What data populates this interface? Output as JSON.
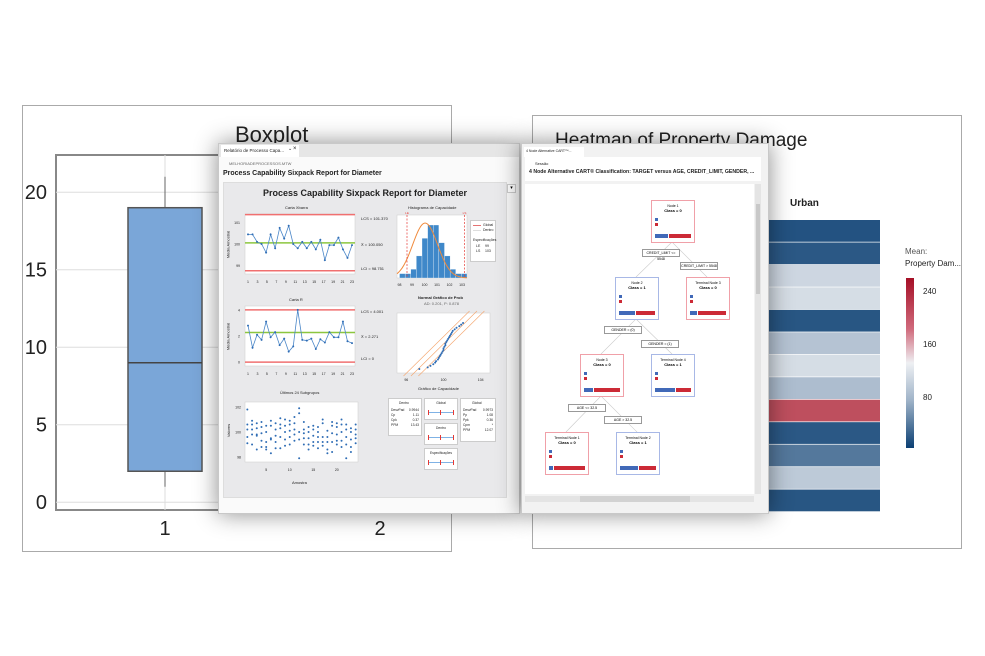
{
  "boxplot": {
    "title": "Boxplot",
    "chart_data": {
      "type": "box",
      "categories": [
        "1",
        "2"
      ],
      "ylim": [
        -0.5,
        22.4
      ],
      "yticks": [
        0,
        5,
        10,
        15,
        20
      ],
      "series": [
        {
          "category": "1",
          "min": 1,
          "q1": 2,
          "median": 9,
          "q3": 19,
          "max": 21
        }
      ],
      "grid": true,
      "box_color": "#7aa6d8"
    }
  },
  "heatmap": {
    "title": "Heatmap of Property Damage",
    "column_label": "Urban",
    "legend_title_1": "Mean:",
    "legend_title_2": "Property Dam...",
    "legend_ticks": [
      "240",
      "160",
      "80"
    ],
    "chart_data": {
      "type": "heatmap",
      "columns": [
        "Urban"
      ],
      "values": [
        15,
        20,
        120,
        125,
        18,
        105,
        125,
        100,
        225,
        20,
        45,
        110,
        18
      ],
      "scale": [
        0,
        260
      ],
      "colors": {
        "low": "#0b3f73",
        "mid": "#dde3ea",
        "high": "#b2182b"
      }
    }
  },
  "sixpack": {
    "tab_label": "Relatório de Processo Capa...",
    "tab_close": "×",
    "tab_menu": "⌄",
    "project": "MELHORIADEPROCESSOS.MTW",
    "report_title": "Process Capability Sixpack Report for Diameter",
    "graph_title": "Process Capability Sixpack Report for Diameter",
    "collapse": "▾",
    "ichart": {
      "title": "Carta Xbarra",
      "ylabel": "Média Amostral",
      "yticks": [
        "101",
        "100",
        "99"
      ],
      "ucl_label": "LCS = 101.370",
      "cl_label": "X̄ = 100.050",
      "lcl_label": "LCI = 98.751",
      "xticks": [
        "1",
        "3",
        "5",
        "7",
        "9",
        "11",
        "13",
        "15",
        "17",
        "19",
        "21",
        "23"
      ],
      "chart_data": {
        "type": "line",
        "ylim": [
          98.6,
          101.4
        ],
        "ucl": 101.37,
        "cl": 100.05,
        "lcl": 98.751,
        "values": [
          100.45,
          100.45,
          100.1,
          100.0,
          99.6,
          100.45,
          99.8,
          100.75,
          100.25,
          100.85,
          100.0,
          99.8,
          100.1,
          99.8,
          100.1,
          99.75,
          100.2,
          99.25,
          99.95,
          99.95,
          100.3,
          99.75,
          99.35,
          99.95
        ]
      }
    },
    "mrchart": {
      "title": "Carta R",
      "ylabel": "Média Amostral",
      "yticks": [
        "4",
        "2",
        "0"
      ],
      "ucl_label": "LCS = 4.001",
      "cl_label": "X̄ = 2.271",
      "lcl_label": "LCI = 0",
      "xticks": [
        "1",
        "3",
        "5",
        "7",
        "9",
        "11",
        "13",
        "15",
        "17",
        "19",
        "21",
        "23"
      ],
      "chart_data": {
        "type": "line",
        "ylim": [
          -0.3,
          4.3
        ],
        "ucl": 4.001,
        "cl": 2.271,
        "lcl": 0,
        "values": [
          2.8,
          1.1,
          2.1,
          1.7,
          3.1,
          1.9,
          2.3,
          1.3,
          1.8,
          0.8,
          1.2,
          4.0,
          1.7,
          1.65,
          1.8,
          1.0,
          1.75,
          1.5,
          2.3,
          1.9,
          1.9,
          3.1,
          1.6,
          1.45
        ]
      }
    },
    "lastsub": {
      "title": "Últimos 24 Subgrupos",
      "ylabel": "Valores",
      "xlabel": "Amostra",
      "yticks": [
        "102",
        "100",
        "98"
      ],
      "xticks": [
        "5",
        "10",
        "15",
        "20"
      ],
      "chart_data": {
        "type": "scatter",
        "ylim": [
          97.6,
          102.4
        ],
        "xlim": [
          0.5,
          24.5
        ],
        "values": [
          [
            101.8,
            100.6,
            100.2,
            99.6,
            99.1
          ],
          [
            100.9,
            100.6,
            100.2,
            99.8,
            99.0
          ],
          [
            100.7,
            100.3,
            99.8,
            99.7,
            98.6
          ],
          [
            100.8,
            100.4,
            99.9,
            99.3,
            98.8
          ],
          [
            100.5,
            100.0,
            99.2,
            98.6,
            98.8
          ],
          [
            100.9,
            100.5,
            99.5,
            99.4,
            98.3
          ],
          [
            100.7,
            100.2,
            99.7,
            99.2,
            98.7
          ],
          [
            101.1,
            100.6,
            100.3,
            99.6,
            98.7
          ],
          [
            101.0,
            100.5,
            100.0,
            99.4,
            98.9
          ],
          [
            100.9,
            100.6,
            100.1,
            99.6,
            99.0
          ],
          [
            101.2,
            100.7,
            100.2,
            99.8,
            99.3
          ],
          [
            101.9,
            101.5,
            100.0,
            99.4,
            97.9
          ],
          [
            100.8,
            100.2,
            99.9,
            99.5,
            99.0
          ],
          [
            100.4,
            100.0,
            99.5,
            99.0,
            98.6
          ],
          [
            100.5,
            100.2,
            99.7,
            99.2,
            98.9
          ],
          [
            100.4,
            100.0,
            99.6,
            99.2,
            98.7
          ],
          [
            101.0,
            100.7,
            99.6,
            99.2,
            98.9
          ],
          [
            100.1,
            99.6,
            99.2,
            98.6,
            98.3
          ],
          [
            100.8,
            100.5,
            99.9,
            99.2,
            98.4
          ],
          [
            100.7,
            100.4,
            99.8,
            99.3,
            99.0
          ],
          [
            101.0,
            100.6,
            100.0,
            99.3,
            98.8
          ],
          [
            100.6,
            100.2,
            99.6,
            99.0,
            97.9
          ],
          [
            100.3,
            100.0,
            99.4,
            98.8,
            98.4
          ],
          [
            100.6,
            100.2,
            99.8,
            99.5,
            99.1
          ]
        ]
      }
    },
    "histogram": {
      "title": "Histograma de Capacidade",
      "xticks": [
        "98",
        "99",
        "100",
        "101",
        "102",
        "103"
      ],
      "spec_l": "LE",
      "spec_u": "LS",
      "legend": {
        "global": "Global",
        "within": "Dentro",
        "specs": "Especificações",
        "le_label": "LE",
        "le_value": "99",
        "ls_label": "LS",
        "ls_value": "103"
      },
      "chart_data": {
        "type": "bar",
        "xlim": [
          97.8,
          103.4
        ],
        "bin_start": 98.0,
        "bin_width": 0.45,
        "counts": [
          1,
          1,
          2,
          5,
          9,
          12,
          12,
          8,
          5,
          2,
          1,
          1
        ],
        "lsl": 98.6,
        "usl": 103.2,
        "mean": 100.05,
        "sd": 0.9973
      }
    },
    "probplot": {
      "title": "Normal Gráfico de Prob",
      "subtitle": "AD: 0.201, P: 0.878",
      "xticks": [
        "96",
        "100",
        "104"
      ],
      "chart_data": {
        "type": "scatter",
        "xlim": [
          95,
          105
        ],
        "values": [
          97.4,
          98.3,
          98.6,
          98.9,
          99.1,
          99.2,
          99.4,
          99.5,
          99.6,
          99.7,
          99.8,
          99.9,
          100.0,
          100.0,
          100.1,
          100.2,
          100.2,
          100.3,
          100.4,
          100.5,
          100.6,
          100.7,
          100.8,
          100.9,
          101.0,
          101.2,
          101.4,
          101.7,
          101.9,
          102.1
        ]
      }
    },
    "capplot": {
      "title": "Gráfico de Capacidade",
      "within": {
        "title": "Dentro",
        "rows": [
          [
            "DesvPad",
            "0.9944"
          ],
          [
            "Cp",
            "1.11"
          ],
          [
            "Cpk",
            "0.37"
          ],
          [
            "PPM",
            "13.43"
          ]
        ]
      },
      "overall": {
        "title": "Global",
        "rows": [
          [
            "DesvPad",
            "0.9973"
          ],
          [
            "Pp",
            "1.08"
          ],
          [
            "Ppk",
            "0.36"
          ],
          [
            "Cpm",
            "*"
          ],
          [
            "PPM",
            "12.07"
          ]
        ]
      },
      "bars": [
        "Global",
        "Dentro",
        "Especificações"
      ]
    }
  },
  "cart": {
    "tab_label": "4 Node Alternative CART™...",
    "session": "Sessão",
    "title": "4 Node Alternative CART® Classification: TARGET versus AGE, CREDIT_LIMIT, GENDER, ...",
    "colors": {
      "class0": "#cc2a36",
      "class1": "#4169b8"
    },
    "nodes": [
      {
        "label": "Node 1",
        "cls": "Class = 0",
        "type": "0",
        "c1": "0.35"
      },
      {
        "label": "Node 2",
        "cls": "Class = 1",
        "type": "1",
        "c1": "0.45"
      },
      {
        "label": "Terminal Node 3",
        "cls": "Class = 0",
        "type": "0",
        "c1": "0.2"
      },
      {
        "label": "Node 3",
        "cls": "Class = 0",
        "type": "0",
        "c1": "0.25"
      },
      {
        "label": "Terminal Node 4",
        "cls": "Class = 1",
        "type": "1",
        "c1": "0.55"
      },
      {
        "label": "Terminal Node 1",
        "cls": "Class = 0",
        "type": "0",
        "c1": "0.1"
      },
      {
        "label": "Terminal Node 2",
        "cls": "Class = 1",
        "type": "1",
        "c1": "0.5"
      }
    ],
    "splits": [
      "CREDIT_LIMIT <= 5548",
      "CREDIT_LIMIT > 5548",
      "GENDER = (0)",
      "GENDER = (1)",
      "AGE <= 32.5",
      "AGE > 32.5"
    ]
  }
}
